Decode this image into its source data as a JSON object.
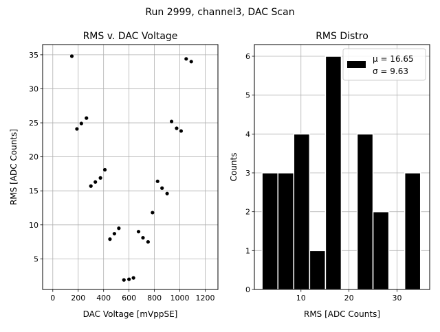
{
  "figure": {
    "suptitle": "Run 2999, channel3, DAC Scan"
  },
  "chart_data": [
    {
      "type": "scatter",
      "title": "RMS v. DAC Voltage",
      "xlabel": "DAC Voltage [mVppSE]",
      "ylabel": "RMS [ADC Counts]",
      "xlim": [
        -80,
        1300
      ],
      "ylim": [
        0.5,
        36.5
      ],
      "xticks": [
        0,
        200,
        400,
        600,
        800,
        1000,
        1200
      ],
      "yticks": [
        5,
        10,
        15,
        20,
        25,
        30,
        35
      ],
      "grid": true,
      "marker_color": "#000000",
      "points": [
        {
          "x": 150,
          "y": 34.8
        },
        {
          "x": 190,
          "y": 24.1
        },
        {
          "x": 225,
          "y": 24.9
        },
        {
          "x": 265,
          "y": 25.7
        },
        {
          "x": 300,
          "y": 15.7
        },
        {
          "x": 335,
          "y": 16.3
        },
        {
          "x": 375,
          "y": 16.9
        },
        {
          "x": 410,
          "y": 18.1
        },
        {
          "x": 450,
          "y": 7.9
        },
        {
          "x": 485,
          "y": 8.7
        },
        {
          "x": 520,
          "y": 9.5
        },
        {
          "x": 560,
          "y": 1.9
        },
        {
          "x": 600,
          "y": 2.0
        },
        {
          "x": 635,
          "y": 2.2
        },
        {
          "x": 675,
          "y": 9.0
        },
        {
          "x": 710,
          "y": 8.1
        },
        {
          "x": 750,
          "y": 7.5
        },
        {
          "x": 785,
          "y": 11.8
        },
        {
          "x": 825,
          "y": 16.4
        },
        {
          "x": 860,
          "y": 15.4
        },
        {
          "x": 900,
          "y": 14.6
        },
        {
          "x": 935,
          "y": 25.2
        },
        {
          "x": 975,
          "y": 24.2
        },
        {
          "x": 1010,
          "y": 23.8
        },
        {
          "x": 1050,
          "y": 34.4
        },
        {
          "x": 1090,
          "y": 34.0
        }
      ]
    },
    {
      "type": "bar",
      "title": "RMS Distro",
      "xlabel": "RMS [ADC Counts]",
      "ylabel": "Counts",
      "xlim": [
        0.3,
        36.8
      ],
      "ylim": [
        0,
        6.3
      ],
      "xticks": [
        10,
        20,
        30
      ],
      "yticks": [
        0,
        1,
        2,
        3,
        4,
        5,
        6
      ],
      "grid": true,
      "bar_color": "#000000",
      "bar_edge_color": "#ffffff",
      "bins": [
        {
          "start": 1.9,
          "end": 5.2,
          "count": 3
        },
        {
          "start": 5.2,
          "end": 8.5,
          "count": 3
        },
        {
          "start": 8.5,
          "end": 11.8,
          "count": 4
        },
        {
          "start": 11.8,
          "end": 15.1,
          "count": 1
        },
        {
          "start": 15.1,
          "end": 18.4,
          "count": 6
        },
        {
          "start": 18.4,
          "end": 21.7,
          "count": 0
        },
        {
          "start": 21.7,
          "end": 25.0,
          "count": 4
        },
        {
          "start": 25.0,
          "end": 28.3,
          "count": 2
        },
        {
          "start": 28.3,
          "end": 31.6,
          "count": 0
        },
        {
          "start": 31.6,
          "end": 34.9,
          "count": 3
        }
      ],
      "legend": {
        "placement": "upper right",
        "mu_label": "μ = 16.65",
        "sigma_label": "σ = 9.63"
      }
    }
  ]
}
